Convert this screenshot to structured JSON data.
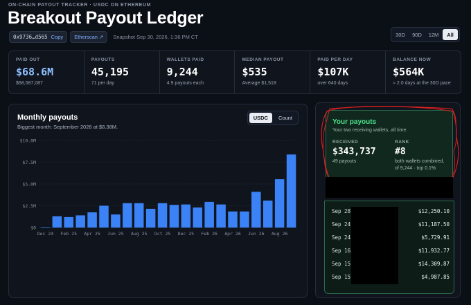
{
  "header": {
    "eyebrow": "ON-CHAIN PAYOUT TRACKER · USDC ON ETHEREUM",
    "title": "Breakout Payout Ledger",
    "address": "0x9736…d565",
    "copy_label": "Copy",
    "etherscan_label": "Etherscan ↗",
    "snapshot": "Snapshot Sep 30, 2026, 1:36 PM CT"
  },
  "ranges": {
    "items": [
      "30D",
      "90D",
      "12M",
      "All"
    ],
    "active": "All"
  },
  "stats": [
    {
      "label": "PAID OUT",
      "value": "$68.6M",
      "sub": "$68,587,087"
    },
    {
      "label": "PAYOUTS",
      "value": "45,195",
      "sub": "71 per day"
    },
    {
      "label": "WALLETS PAID",
      "value": "9,244",
      "sub": "4.9 payouts each"
    },
    {
      "label": "MEDIAN PAYOUT",
      "value": "$535",
      "sub": "Average $1,518"
    },
    {
      "label": "PAID PER DAY",
      "value": "$107K",
      "sub": "over 640 days"
    },
    {
      "label": "BALANCE NOW",
      "value": "$564K",
      "sub": "≈ 2.0 days at the 30D pace"
    }
  ],
  "monthly": {
    "title": "Monthly payouts",
    "subtitle": "Biggest month: September 2026 at $8.38M.",
    "toggle": [
      "USDC",
      "Count"
    ],
    "toggle_active": "USDC"
  },
  "chart_data": {
    "type": "bar",
    "title": "Monthly payouts",
    "categories": [
      "Dec 24",
      "Jan 25",
      "Feb 25",
      "Mar 25",
      "Apr 25",
      "May 25",
      "Jun 25",
      "Jul 25",
      "Aug 25",
      "Sep 25",
      "Oct 25",
      "Nov 25",
      "Dec 25",
      "Jan 26",
      "Feb 26",
      "Mar 26",
      "Apr 26",
      "May 26",
      "Jun 26",
      "Jul 26",
      "Aug 26",
      "Sep 26"
    ],
    "x_tick_labels": [
      "Dec 24",
      "Feb 25",
      "Apr 25",
      "Jun 25",
      "Aug 25",
      "Oct 25",
      "Dec 25",
      "Feb 26",
      "Apr 26",
      "Jun 26",
      "Aug 26"
    ],
    "values": [
      0.05,
      1.3,
      1.2,
      1.4,
      1.75,
      2.5,
      1.5,
      2.8,
      2.8,
      2.15,
      2.8,
      2.6,
      2.65,
      2.3,
      2.95,
      2.65,
      1.85,
      1.85,
      4.1,
      3.1,
      5.55,
      8.38
    ],
    "unit": "$M",
    "ylim": [
      0,
      10
    ],
    "y_tick_labels": [
      "$0",
      "$2.5M",
      "$5.0M",
      "$7.5M",
      "$10.0M"
    ],
    "grid": true,
    "color": "#3b82f6"
  },
  "your": {
    "title": "Your payouts",
    "subtitle": "Your two receiving wallets, all time.",
    "received_label": "RECEIVED",
    "received_value": "$343,737",
    "received_sub": "49 payouts",
    "rank_label": "RANK",
    "rank_value": "#8",
    "rank_sub1": "both wallets combined,",
    "rank_sub2": "of 9,244 · top 0.1%",
    "transactions": [
      {
        "date": "Sep 28",
        "amount": "$12,250.10"
      },
      {
        "date": "Sep 24",
        "amount": "$11,187.50"
      },
      {
        "date": "Sep 24",
        "amount": "$5,729.91"
      },
      {
        "date": "Sep 16",
        "amount": "$11,932.77"
      },
      {
        "date": "Sep 15",
        "amount": "$14,309.87"
      },
      {
        "date": "Sep 15",
        "amount": "$4,987.85"
      }
    ]
  },
  "colors": {
    "accent": "#3b82f6",
    "positive": "#4be08a",
    "annotation": "#e02020"
  }
}
